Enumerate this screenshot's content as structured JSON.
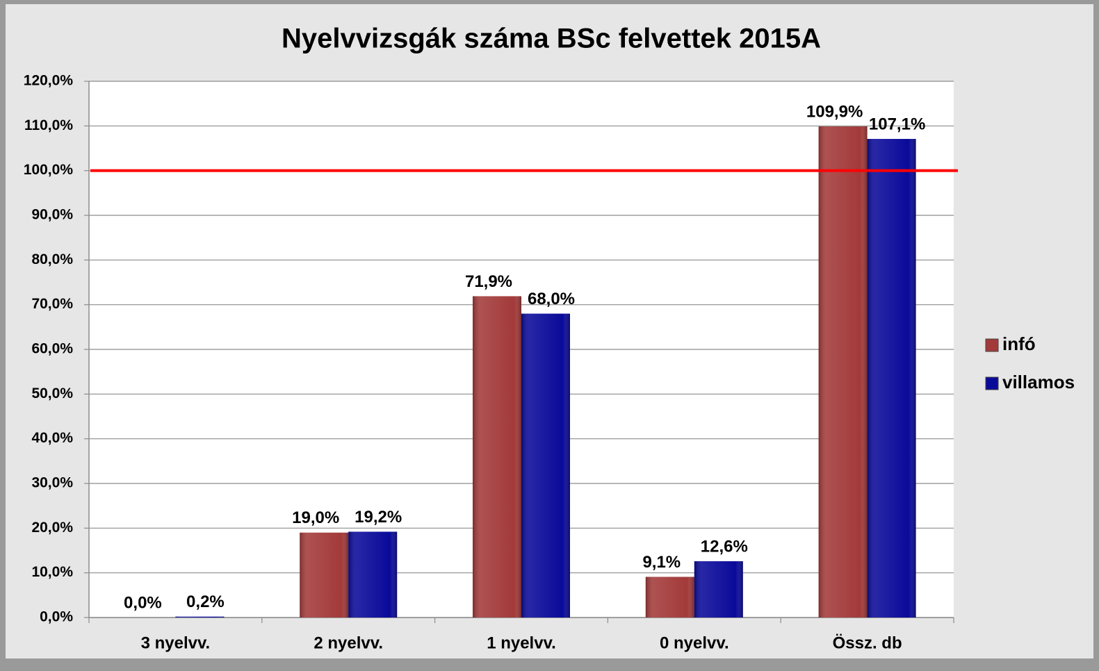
{
  "chart_data": {
    "type": "bar",
    "title": "Nyelvvizsgák száma BSc felvettek 2015A",
    "categories": [
      "3 nyelvv.",
      "2 nyelvv.",
      "1 nyelvv.",
      "0 nyelvv.",
      "Össz. db"
    ],
    "series": [
      {
        "name": "infó",
        "color": "#a33a3a",
        "values": [
          0.0,
          19.0,
          71.9,
          9.1,
          109.9
        ],
        "value_labels": [
          "0,0%",
          "19,0%",
          "71,9%",
          "9,1%",
          "109,9%"
        ]
      },
      {
        "name": "villamos",
        "color": "#0a0a9a",
        "values": [
          0.2,
          19.2,
          68.0,
          12.6,
          107.1
        ],
        "value_labels": [
          "0,2%",
          "19,2%",
          "68,0%",
          "12,6%",
          "107,1%"
        ]
      }
    ],
    "ylim": [
      0,
      120
    ],
    "yticks": [
      {
        "value": 0,
        "label": "0,0%"
      },
      {
        "value": 10,
        "label": "10,0%"
      },
      {
        "value": 20,
        "label": "20,0%"
      },
      {
        "value": 30,
        "label": "30,0%"
      },
      {
        "value": 40,
        "label": "40,0%"
      },
      {
        "value": 50,
        "label": "50,0%"
      },
      {
        "value": 60,
        "label": "60,0%"
      },
      {
        "value": 70,
        "label": "70,0%"
      },
      {
        "value": 80,
        "label": "80,0%"
      },
      {
        "value": 90,
        "label": "90,0%"
      },
      {
        "value": 100,
        "label": "100,0%"
      },
      {
        "value": 110,
        "label": "110,0%"
      },
      {
        "value": 120,
        "label": "120,0%"
      }
    ],
    "grid": true,
    "legend": "right",
    "reference_line": {
      "value": 100,
      "color": "#ff0000"
    }
  }
}
